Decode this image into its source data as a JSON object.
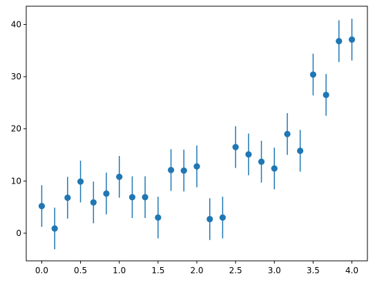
{
  "chart_data": {
    "type": "scatter",
    "title": "",
    "xlabel": "",
    "ylabel": "",
    "xlim": [
      -0.2,
      4.2
    ],
    "ylim": [
      -5.3,
      43.5
    ],
    "xticks": [
      0.0,
      0.5,
      1.0,
      1.5,
      2.0,
      2.5,
      3.0,
      3.5,
      4.0
    ],
    "xtick_labels": [
      "0.0",
      "0.5",
      "1.0",
      "1.5",
      "2.0",
      "2.5",
      "3.0",
      "3.5",
      "4.0"
    ],
    "yticks": [
      0,
      10,
      20,
      30,
      40
    ],
    "ytick_labels": [
      "0",
      "10",
      "20",
      "30",
      "40"
    ],
    "grid": false,
    "error_bar": 4,
    "color": "#1f77b4",
    "series": [
      {
        "x": [
          0.0,
          0.167,
          0.333,
          0.5,
          0.667,
          0.833,
          1.0,
          1.167,
          1.333,
          1.5,
          1.667,
          1.833,
          2.0,
          2.167,
          2.333,
          2.5,
          2.667,
          2.833,
          3.0,
          3.167,
          3.333,
          3.5,
          3.667,
          3.833,
          4.0
        ],
        "y": [
          5.2,
          0.9,
          6.8,
          9.9,
          5.9,
          7.6,
          10.8,
          6.9,
          6.9,
          3.0,
          12.1,
          12.0,
          12.8,
          2.7,
          3.0,
          16.5,
          15.1,
          13.7,
          12.4,
          19.0,
          15.8,
          30.4,
          26.5,
          36.8,
          37.1
        ]
      }
    ]
  }
}
